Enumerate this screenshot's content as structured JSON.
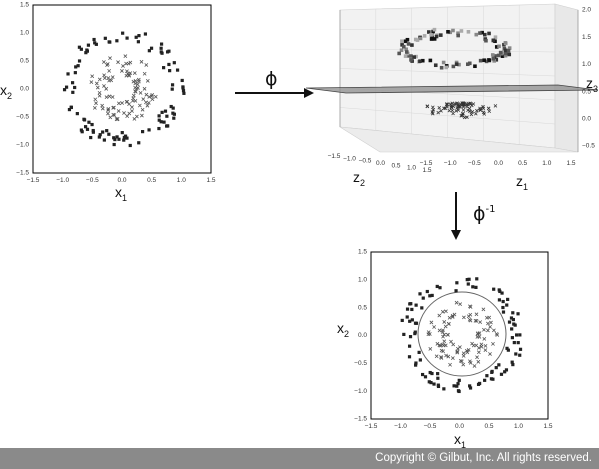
{
  "panels": [
    {
      "id": "input-space",
      "xlabel": "x",
      "xlabel_sub": "1",
      "ylabel": "x",
      "ylabel_sub": "2",
      "xticks": [
        "−1.5",
        "−1.0",
        "−0.5",
        "0.0",
        "0.5",
        "1.0",
        "1.5"
      ],
      "yticks": [
        "1.5",
        "1.0",
        "0.5",
        "0.0",
        "−0.5",
        "−1.0",
        "−1.5"
      ],
      "outer_class_marker": "square",
      "inner_class_marker": "x"
    },
    {
      "id": "feature-space",
      "xlabel": "z",
      "xlabel_sub": "1",
      "ylabel": "z",
      "ylabel_sub": "2",
      "zlabel": "z",
      "zlabel_sub": "3",
      "xticks": [
        "−1.5",
        "−1.0",
        "−0.5",
        "0.0",
        "0.5",
        "1.0",
        "1.5"
      ],
      "yticks": [
        "−1.5",
        "−1.0",
        "−0.5",
        "0.0",
        "0.5",
        "1.0",
        "1.5"
      ],
      "zticks": [
        "2.0",
        "1.5",
        "1.0",
        "0.5",
        "0.0",
        "−0.5"
      ]
    },
    {
      "id": "decision-boundary",
      "xlabel": "x",
      "xlabel_sub": "1",
      "ylabel": "x",
      "ylabel_sub": "2",
      "xticks": [
        "−1.5",
        "−1.0",
        "−0.5",
        "0.0",
        "0.5",
        "1.0",
        "1.5"
      ],
      "yticks": [
        "1.5",
        "1.0",
        "0.5",
        "0.0",
        "−0.5",
        "−1.0",
        "−1.5"
      ]
    }
  ],
  "arrows": [
    {
      "id": "phi",
      "label": "ϕ",
      "sup": ""
    },
    {
      "id": "phi-inverse",
      "label": "ϕ",
      "sup": "-1"
    }
  ],
  "footer": {
    "text": "Copyright © Gilbut, Inc. All rights reserved."
  },
  "colors": {
    "marker": "#222222",
    "inner_marker": "#555555",
    "footer_bg": "#8a8a8a"
  }
}
